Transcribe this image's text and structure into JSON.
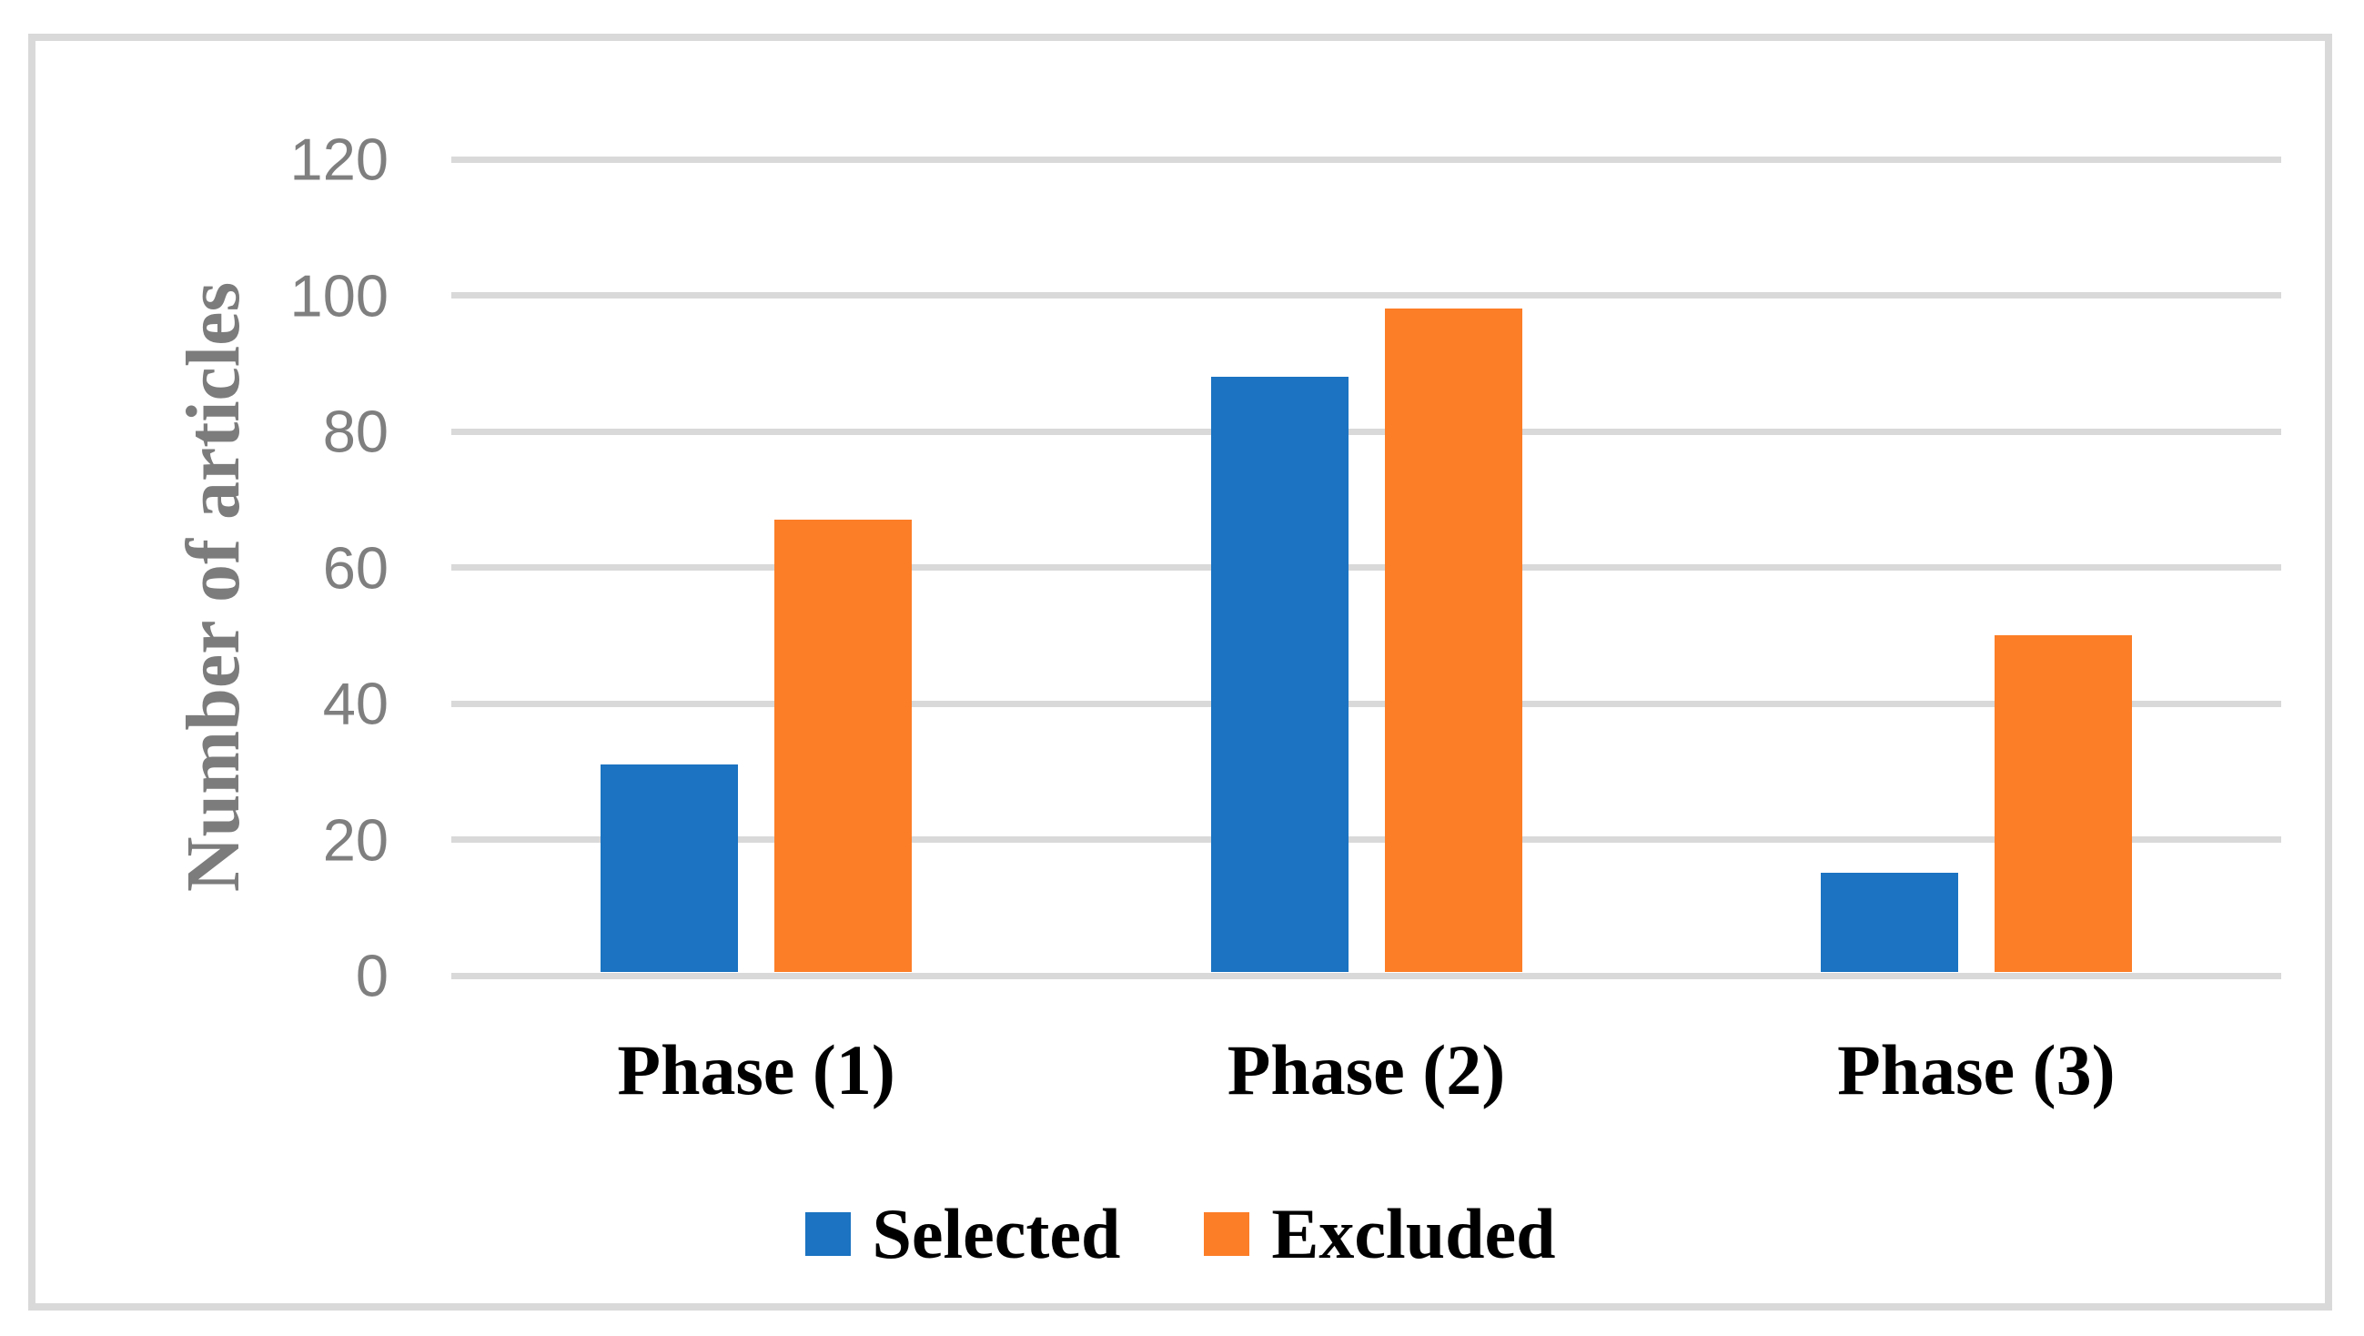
{
  "figure": {
    "background_color": "#FFFFFF",
    "border_color": "#D9D9D9"
  },
  "chart_data": {
    "type": "bar",
    "title": "",
    "categories": [
      "Phase (1)",
      "Phase (2)",
      "Phase (3)"
    ],
    "series": [
      {
        "name": "Selected",
        "color": "#1B73C1",
        "values": [
          31,
          88,
          15
        ]
      },
      {
        "name": "Excluded",
        "color": "#FC7E27",
        "values": [
          67,
          98,
          50
        ]
      }
    ],
    "xlabel": "",
    "ylabel": "Number of articles",
    "ylim": [
      0,
      120
    ],
    "yticks": [
      0,
      20,
      40,
      60,
      80,
      100,
      120
    ],
    "grid": "horizontal-only",
    "gridline_color": "#D9D9D9",
    "tick_label_color": "#7F7F7F",
    "axis_title_color": "#7C7C7C",
    "category_label_color": "#000000",
    "legend_position": "bottom-center"
  }
}
